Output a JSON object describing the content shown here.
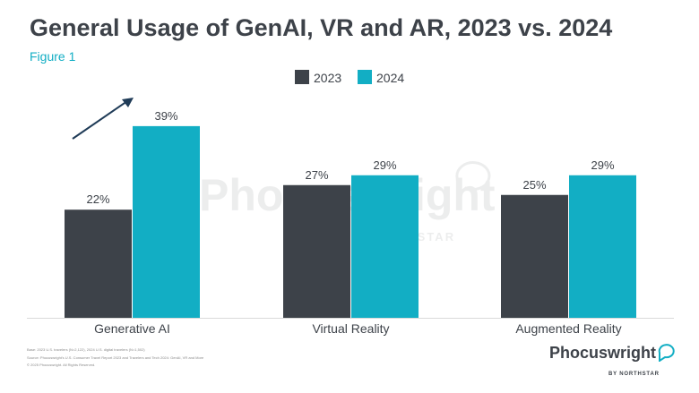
{
  "title": "General Usage of GenAI, VR and AR, 2023 vs. 2024",
  "subtitle": "Figure 1",
  "colors": {
    "s2023": "#3d4249",
    "s2024": "#12aec4",
    "text": "#3d4249",
    "accent": "#12aec4"
  },
  "chart_data": {
    "type": "bar",
    "title": "General Usage of GenAI, VR and AR, 2023 vs. 2024",
    "categories": [
      "Generative AI",
      "Virtual Reality",
      "Augmented Reality"
    ],
    "series": [
      {
        "name": "2023",
        "values": [
          22,
          27,
          25
        ],
        "labels": [
          "22%",
          "27%",
          "25%"
        ]
      },
      {
        "name": "2024",
        "values": [
          39,
          29,
          29
        ],
        "labels": [
          "39%",
          "29%",
          "29%"
        ]
      }
    ],
    "ylim": [
      0,
      40
    ],
    "legend": "top-center",
    "grid": false,
    "annotations": [
      "upward-trend-arrow on Generative AI"
    ]
  },
  "watermark": {
    "name": "Phocuswright",
    "sub": "BY NORTHSTAR"
  },
  "footnotes": [
    "Base: 2023 U.S. travelers (N=2,122), 2024 U.S. digital travelers (N=1,502)",
    "Source: Phocuswright's U.S. Consumer Travel Report 2023 and Travelers and Tech 2024: GenAI, VR and More",
    "© 2025 Phocuswright. All Rights Reserved."
  ],
  "logo": {
    "name": "Phocuswright",
    "sub": "BY NORTHSTAR",
    "icon": "speech-bubble-icon"
  }
}
